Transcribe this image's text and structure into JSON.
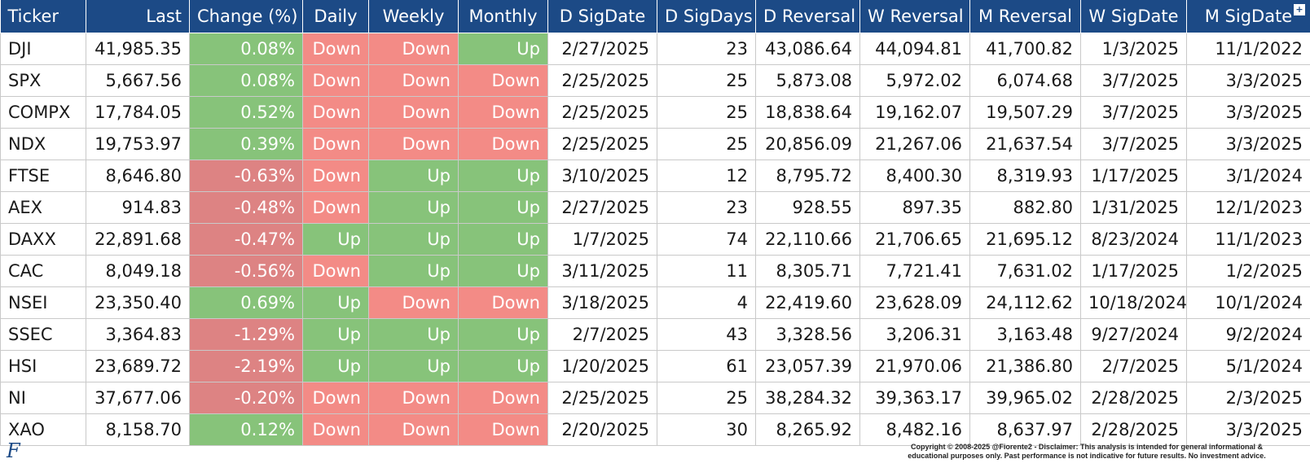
{
  "table": {
    "headers": [
      "Ticker",
      "Last",
      "Change (%)",
      "Daily",
      "Weekly",
      "Monthly",
      "D SigDate",
      "D SigDays",
      "D Reversal",
      "W Reversal",
      "M Reversal",
      "W SigDate",
      "M SigDate"
    ],
    "rows": [
      {
        "ticker": "DJI",
        "last": "41,985.35",
        "change": "0.08%",
        "change_dir": "pos",
        "daily": "Down",
        "weekly": "Down",
        "monthly": "Up",
        "d_sigdate": "2/27/2025",
        "d_sigdays": "23",
        "d_reversal": "43,086.64",
        "w_reversal": "44,094.81",
        "m_reversal": "41,700.82",
        "w_sigdate": "1/3/2025",
        "m_sigdate": "11/1/2022"
      },
      {
        "ticker": "SPX",
        "last": "5,667.56",
        "change": "0.08%",
        "change_dir": "pos",
        "daily": "Down",
        "weekly": "Down",
        "monthly": "Down",
        "d_sigdate": "2/25/2025",
        "d_sigdays": "25",
        "d_reversal": "5,873.08",
        "w_reversal": "5,972.02",
        "m_reversal": "6,074.68",
        "w_sigdate": "3/7/2025",
        "m_sigdate": "3/3/2025"
      },
      {
        "ticker": "COMPX",
        "last": "17,784.05",
        "change": "0.52%",
        "change_dir": "pos",
        "daily": "Down",
        "weekly": "Down",
        "monthly": "Down",
        "d_sigdate": "2/25/2025",
        "d_sigdays": "25",
        "d_reversal": "18,838.64",
        "w_reversal": "19,162.07",
        "m_reversal": "19,507.29",
        "w_sigdate": "3/7/2025",
        "m_sigdate": "3/3/2025"
      },
      {
        "ticker": "NDX",
        "last": "19,753.97",
        "change": "0.39%",
        "change_dir": "pos",
        "daily": "Down",
        "weekly": "Down",
        "monthly": "Down",
        "d_sigdate": "2/25/2025",
        "d_sigdays": "25",
        "d_reversal": "20,856.09",
        "w_reversal": "21,267.06",
        "m_reversal": "21,637.54",
        "w_sigdate": "3/7/2025",
        "m_sigdate": "3/3/2025"
      },
      {
        "ticker": "FTSE",
        "last": "8,646.80",
        "change": "-0.63%",
        "change_dir": "neg",
        "daily": "Down",
        "weekly": "Up",
        "monthly": "Up",
        "d_sigdate": "3/10/2025",
        "d_sigdays": "12",
        "d_reversal": "8,795.72",
        "w_reversal": "8,400.30",
        "m_reversal": "8,319.93",
        "w_sigdate": "1/17/2025",
        "m_sigdate": "3/1/2024"
      },
      {
        "ticker": "AEX",
        "last": "914.83",
        "change": "-0.48%",
        "change_dir": "neg",
        "daily": "Down",
        "weekly": "Up",
        "monthly": "Up",
        "d_sigdate": "2/27/2025",
        "d_sigdays": "23",
        "d_reversal": "928.55",
        "w_reversal": "897.35",
        "m_reversal": "882.80",
        "w_sigdate": "1/31/2025",
        "m_sigdate": "12/1/2023"
      },
      {
        "ticker": "DAXX",
        "last": "22,891.68",
        "change": "-0.47%",
        "change_dir": "neg",
        "daily": "Up",
        "weekly": "Up",
        "monthly": "Up",
        "d_sigdate": "1/7/2025",
        "d_sigdays": "74",
        "d_reversal": "22,110.66",
        "w_reversal": "21,706.65",
        "m_reversal": "21,695.12",
        "w_sigdate": "8/23/2024",
        "m_sigdate": "11/1/2023"
      },
      {
        "ticker": "CAC",
        "last": "8,049.18",
        "change": "-0.56%",
        "change_dir": "neg",
        "daily": "Down",
        "weekly": "Up",
        "monthly": "Up",
        "d_sigdate": "3/11/2025",
        "d_sigdays": "11",
        "d_reversal": "8,305.71",
        "w_reversal": "7,721.41",
        "m_reversal": "7,631.02",
        "w_sigdate": "1/17/2025",
        "m_sigdate": "1/2/2025"
      },
      {
        "ticker": "NSEI",
        "last": "23,350.40",
        "change": "0.69%",
        "change_dir": "pos",
        "daily": "Up",
        "weekly": "Down",
        "monthly": "Down",
        "d_sigdate": "3/18/2025",
        "d_sigdays": "4",
        "d_reversal": "22,419.60",
        "w_reversal": "23,628.09",
        "m_reversal": "24,112.62",
        "w_sigdate": "10/18/2024",
        "m_sigdate": "10/1/2024"
      },
      {
        "ticker": "SSEC",
        "last": "3,364.83",
        "change": "-1.29%",
        "change_dir": "neg",
        "daily": "Up",
        "weekly": "Up",
        "monthly": "Up",
        "d_sigdate": "2/7/2025",
        "d_sigdays": "43",
        "d_reversal": "3,328.56",
        "w_reversal": "3,206.31",
        "m_reversal": "3,163.48",
        "w_sigdate": "9/27/2024",
        "m_sigdate": "9/2/2024"
      },
      {
        "ticker": "HSI",
        "last": "23,689.72",
        "change": "-2.19%",
        "change_dir": "neg",
        "daily": "Up",
        "weekly": "Up",
        "monthly": "Up",
        "d_sigdate": "1/20/2025",
        "d_sigdays": "61",
        "d_reversal": "23,057.39",
        "w_reversal": "21,970.06",
        "m_reversal": "21,386.80",
        "w_sigdate": "2/7/2025",
        "m_sigdate": "5/1/2024"
      },
      {
        "ticker": "NI",
        "last": "37,677.06",
        "change": "-0.20%",
        "change_dir": "neg",
        "daily": "Down",
        "weekly": "Down",
        "monthly": "Down",
        "d_sigdate": "2/25/2025",
        "d_sigdays": "25",
        "d_reversal": "38,284.32",
        "w_reversal": "39,363.17",
        "m_reversal": "39,965.02",
        "w_sigdate": "2/28/2025",
        "m_sigdate": "2/3/2025"
      },
      {
        "ticker": "XAO",
        "last": "8,158.70",
        "change": "0.12%",
        "change_dir": "pos",
        "daily": "Down",
        "weekly": "Down",
        "monthly": "Down",
        "d_sigdate": "2/20/2025",
        "d_sigdays": "30",
        "d_reversal": "8,265.92",
        "w_reversal": "8,482.16",
        "m_reversal": "8,637.97",
        "w_sigdate": "2/28/2025",
        "m_sigdate": "3/3/2025"
      }
    ]
  },
  "header_icon": "expand-icon",
  "header_icon_glyph": "+",
  "footer": {
    "logo": "F",
    "disclaimer_line1": "Copyright © 2008-2025 @Fiorente2 - Disclaimer: This analysis is intended for general informational &",
    "disclaimer_line2": "educational purposes only. Past performance is not indicative for future results. No investment advice."
  },
  "colors": {
    "header_bg": "#1c4a86",
    "up": "#87c37a",
    "down": "#f38b86",
    "negative_change": "#dd8383"
  }
}
